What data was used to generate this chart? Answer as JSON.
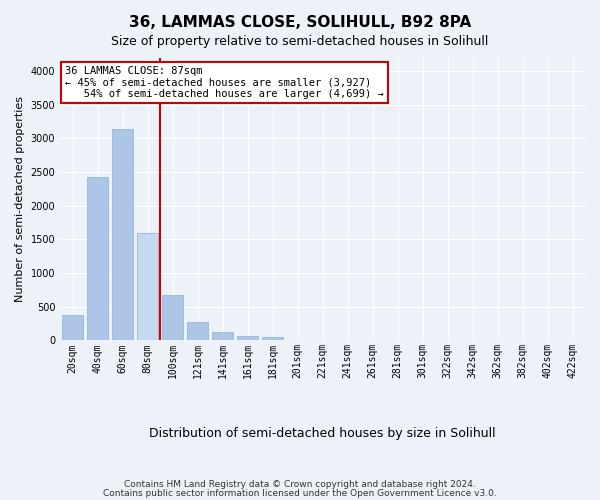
{
  "title": "36, LAMMAS CLOSE, SOLIHULL, B92 8PA",
  "subtitle": "Size of property relative to semi-detached houses in Solihull",
  "xlabel": "Distribution of semi-detached houses by size in Solihull",
  "ylabel": "Number of semi-detached properties",
  "footer1": "Contains HM Land Registry data © Crown copyright and database right 2024.",
  "footer2": "Contains public sector information licensed under the Open Government Licence v3.0.",
  "categories": [
    "20sqm",
    "40sqm",
    "60sqm",
    "80sqm",
    "100sqm",
    "121sqm",
    "141sqm",
    "161sqm",
    "181sqm",
    "201sqm",
    "221sqm",
    "241sqm",
    "261sqm",
    "281sqm",
    "301sqm",
    "322sqm",
    "342sqm",
    "362sqm",
    "382sqm",
    "402sqm",
    "422sqm"
  ],
  "values": [
    380,
    2420,
    3140,
    1600,
    680,
    270,
    130,
    65,
    50,
    0,
    0,
    0,
    0,
    0,
    0,
    0,
    0,
    0,
    0,
    0,
    0
  ],
  "bar_color": "#adc6e8",
  "bar_edge_color": "#8aafd4",
  "highlight_bar_index": 3,
  "highlight_bar_color": "#c5d9f0",
  "highlight_line_color": "#cc0000",
  "red_line_x": 3.5,
  "property_size": 87,
  "pct_smaller": 45,
  "pct_larger": 54,
  "count_smaller": 3927,
  "count_larger": 4699,
  "annotation_box_facecolor": "#ffffff",
  "annotation_box_edgecolor": "#cc0000",
  "ylim": [
    0,
    4200
  ],
  "yticks": [
    0,
    500,
    1000,
    1500,
    2000,
    2500,
    3000,
    3500,
    4000
  ],
  "background_color": "#edf2f9",
  "grid_color": "#ffffff",
  "title_fontsize": 11,
  "subtitle_fontsize": 9,
  "ylabel_fontsize": 8,
  "xlabel_fontsize": 9,
  "tick_fontsize": 7,
  "annotation_fontsize": 7.5,
  "footer_fontsize": 6.5
}
